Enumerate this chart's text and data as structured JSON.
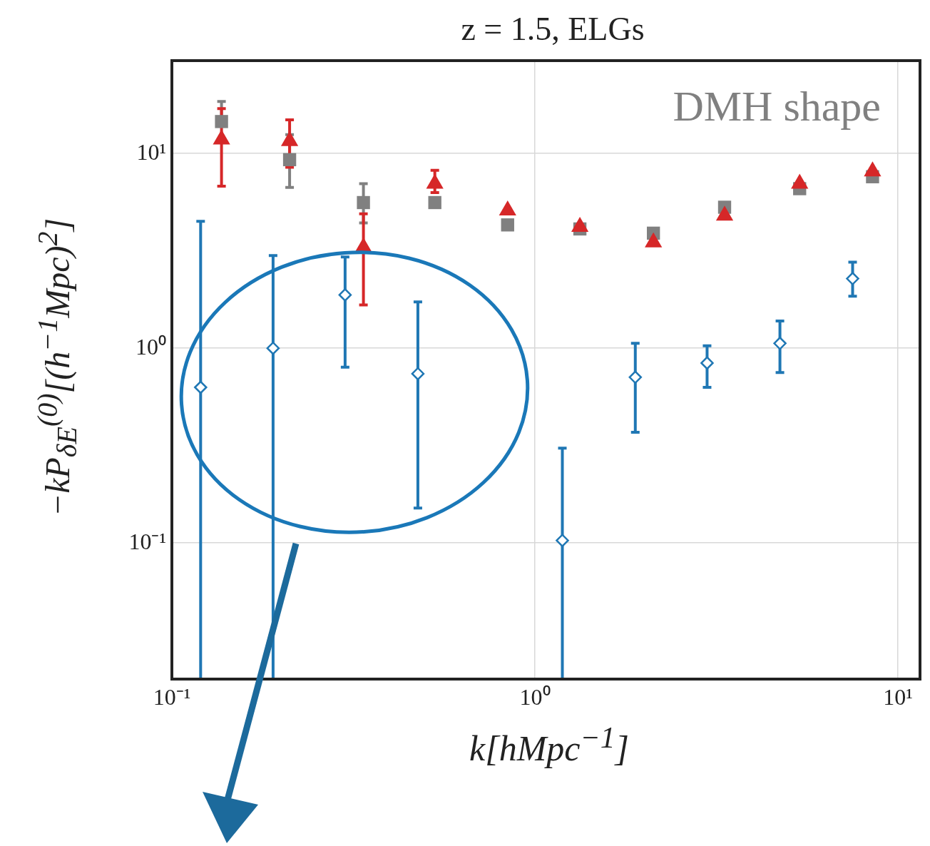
{
  "chart_data": {
    "type": "scatter",
    "title": "z = 1.5, ELGs",
    "xlabel": "k[hMpc$^{−1}$]",
    "ylabel": "−kP$_{δE}$$^{(0)}$[(h$^{−1}$Mpc)$^{2}$]",
    "annotations": [
      "DMH shape"
    ],
    "log": "xy",
    "grid": true,
    "legend": false,
    "xlim": [
      0.1,
      11.5
    ],
    "ylim": [
      0.02,
      30
    ],
    "xticks": [
      {
        "value": 0.1,
        "label": "10⁻¹"
      },
      {
        "value": 1,
        "label": "10⁰"
      },
      {
        "value": 10,
        "label": "10¹"
      }
    ],
    "yticks": [
      {
        "value": 0.1,
        "label": "10⁻¹"
      },
      {
        "value": 1,
        "label": "10⁰"
      },
      {
        "value": 10,
        "label": "10¹"
      }
    ],
    "series": [
      {
        "color": "#808080",
        "marker": "square",
        "x": [
          0.137,
          0.211,
          0.337,
          0.53,
          0.841,
          1.33,
          2.12,
          3.33,
          5.36,
          8.51
        ],
        "values": [
          14.6,
          9.3,
          5.6,
          5.6,
          4.3,
          4.1,
          3.9,
          5.3,
          6.6,
          7.6
        ],
        "errors": [
          [
            14.6,
            18.5
          ],
          [
            6.7,
            12.5
          ],
          [
            4.4,
            7.0
          ],
          null,
          null,
          null,
          null,
          null,
          null,
          null
        ]
      },
      {
        "color": "#d62728",
        "marker": "triangle",
        "x": [
          0.137,
          0.211,
          0.337,
          0.53,
          0.841,
          1.33,
          2.12,
          3.33,
          5.36,
          8.51
        ],
        "values": [
          11.8,
          11.6,
          3.3,
          7.0,
          5.1,
          4.2,
          3.5,
          4.8,
          7.0,
          8.1
        ],
        "errors": [
          [
            6.8,
            17.0
          ],
          [
            8.5,
            14.9
          ],
          [
            1.67,
            4.9
          ],
          [
            6.3,
            8.2
          ],
          null,
          null,
          null,
          null,
          null,
          null
        ]
      },
      {
        "color": "#1f77b4",
        "marker": "diamond",
        "x": [
          0.12,
          0.19,
          0.3,
          0.476,
          1.19,
          1.89,
          2.98,
          4.73,
          7.5
        ],
        "values": [
          0.63,
          1.0,
          1.88,
          0.74,
          0.103,
          0.71,
          0.84,
          1.06,
          2.28
        ],
        "errors": [
          [
            0.02,
            4.49
          ],
          [
            0.02,
            2.99
          ],
          [
            0.8,
            2.94
          ],
          [
            0.151,
            1.73
          ],
          [
            0.02,
            0.307
          ],
          [
            0.37,
            1.06
          ],
          [
            0.63,
            1.03
          ],
          [
            0.75,
            1.38
          ],
          [
            1.85,
            2.77
          ]
        ]
      }
    ]
  }
}
